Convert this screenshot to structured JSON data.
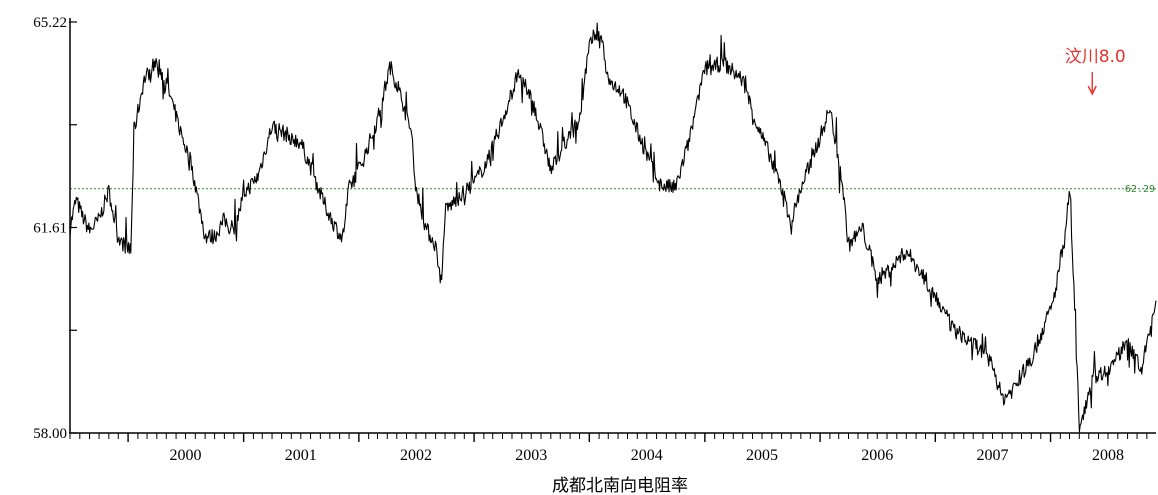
{
  "chart_data": {
    "type": "line",
    "xlabel": "成都北南向电阻率",
    "ylabel": "",
    "ylim": [
      58.0,
      65.22
    ],
    "xlim": [
      "1999-07-01",
      "2008-11-30"
    ],
    "yticks": [
      {
        "value": 65.22,
        "label": "65.22"
      },
      {
        "value": 61.61,
        "label": "61.61"
      },
      {
        "value": 58.0,
        "label": "58.00"
      }
    ],
    "yminor_ticks": [
      63.415,
      59.805
    ],
    "xticks": [
      "2000",
      "2001",
      "2002",
      "2003",
      "2004",
      "2005",
      "2006",
      "2007",
      "2008"
    ],
    "reference_line": {
      "value": 62.29,
      "label": "62.29",
      "color": "#2e8b2e"
    },
    "annotation": {
      "text": "汶川8.0",
      "x": "2008-05-12",
      "color": "#e8322e"
    },
    "series": [
      {
        "color": "#000000",
        "points": [
          [
            "1999-07-01",
            61.6
          ],
          [
            "1999-07-20",
            62.1
          ],
          [
            "1999-08-10",
            61.8
          ],
          [
            "1999-09-01",
            61.55
          ],
          [
            "1999-10-01",
            61.75
          ],
          [
            "1999-11-01",
            62.25
          ],
          [
            "1999-12-01",
            61.4
          ],
          [
            "2000-01-10",
            61.2
          ],
          [
            "2000-01-20",
            63.3
          ],
          [
            "2000-02-20",
            64.2
          ],
          [
            "2000-04-01",
            64.55
          ],
          [
            "2000-05-15",
            63.9
          ],
          [
            "2000-06-15",
            63.3
          ],
          [
            "2000-07-20",
            62.7
          ],
          [
            "2000-09-01",
            61.45
          ],
          [
            "2000-10-01",
            61.45
          ],
          [
            "2000-11-01",
            61.75
          ],
          [
            "2000-12-01",
            61.5
          ],
          [
            "2001-01-01",
            62.2
          ],
          [
            "2001-02-15",
            62.5
          ],
          [
            "2001-04-01",
            63.4
          ],
          [
            "2001-05-15",
            63.25
          ],
          [
            "2001-07-01",
            63.1
          ],
          [
            "2001-08-10",
            62.55
          ],
          [
            "2001-09-01",
            62.2
          ],
          [
            "2001-10-01",
            61.8
          ],
          [
            "2001-11-10",
            61.4
          ],
          [
            "2001-12-01",
            62.3
          ],
          [
            "2002-01-15",
            62.8
          ],
          [
            "2002-03-01",
            63.5
          ],
          [
            "2002-04-10",
            64.45
          ],
          [
            "2002-05-15",
            63.9
          ],
          [
            "2002-06-20",
            63.2
          ],
          [
            "2002-07-01",
            62.3
          ],
          [
            "2002-08-01",
            61.6
          ],
          [
            "2002-09-01",
            61.3
          ],
          [
            "2002-09-20",
            60.6
          ],
          [
            "2002-10-01",
            61.9
          ],
          [
            "2002-11-15",
            62.15
          ],
          [
            "2003-01-01",
            62.4
          ],
          [
            "2003-02-15",
            62.8
          ],
          [
            "2003-04-01",
            63.5
          ],
          [
            "2003-05-20",
            64.3
          ],
          [
            "2003-07-01",
            63.9
          ],
          [
            "2003-08-15",
            63.0
          ],
          [
            "2003-09-01",
            62.6
          ],
          [
            "2003-10-15",
            63.1
          ],
          [
            "2003-12-01",
            63.5
          ],
          [
            "2004-01-01",
            64.8
          ],
          [
            "2004-02-05",
            65.1
          ],
          [
            "2004-03-01",
            64.2
          ],
          [
            "2004-04-15",
            64.0
          ],
          [
            "2004-06-01",
            63.3
          ],
          [
            "2004-07-15",
            62.7
          ],
          [
            "2004-08-15",
            62.35
          ],
          [
            "2004-10-01",
            62.3
          ],
          [
            "2004-11-15",
            63.2
          ],
          [
            "2005-01-01",
            64.4
          ],
          [
            "2005-03-01",
            64.5
          ],
          [
            "2005-05-01",
            64.2
          ],
          [
            "2005-06-15",
            63.4
          ],
          [
            "2005-08-01",
            62.8
          ],
          [
            "2005-09-01",
            62.3
          ],
          [
            "2005-10-01",
            61.7
          ],
          [
            "2005-11-01",
            62.3
          ],
          [
            "2006-01-01",
            63.2
          ],
          [
            "2006-02-01",
            63.7
          ],
          [
            "2006-03-10",
            62.5
          ],
          [
            "2006-04-01",
            61.3
          ],
          [
            "2006-05-15",
            61.6
          ],
          [
            "2006-07-01",
            60.7
          ],
          [
            "2006-08-15",
            60.9
          ],
          [
            "2006-10-01",
            61.2
          ],
          [
            "2006-12-01",
            60.7
          ],
          [
            "2007-01-01",
            60.4
          ],
          [
            "2007-03-01",
            59.8
          ],
          [
            "2007-05-01",
            59.6
          ],
          [
            "2007-07-01",
            59.2
          ],
          [
            "2007-08-01",
            58.6
          ],
          [
            "2007-09-01",
            58.75
          ],
          [
            "2007-11-01",
            59.3
          ],
          [
            "2008-01-10",
            60.3
          ],
          [
            "2008-02-15",
            61.5
          ],
          [
            "2008-03-01",
            62.25
          ],
          [
            "2008-03-15",
            60.5
          ],
          [
            "2008-04-01",
            58.1
          ],
          [
            "2008-05-15",
            59.0
          ],
          [
            "2008-07-01",
            59.1
          ],
          [
            "2008-09-01",
            59.6
          ],
          [
            "2008-10-15",
            59.1
          ],
          [
            "2008-11-10",
            59.8
          ],
          [
            "2008-11-30",
            60.2
          ]
        ]
      }
    ]
  }
}
